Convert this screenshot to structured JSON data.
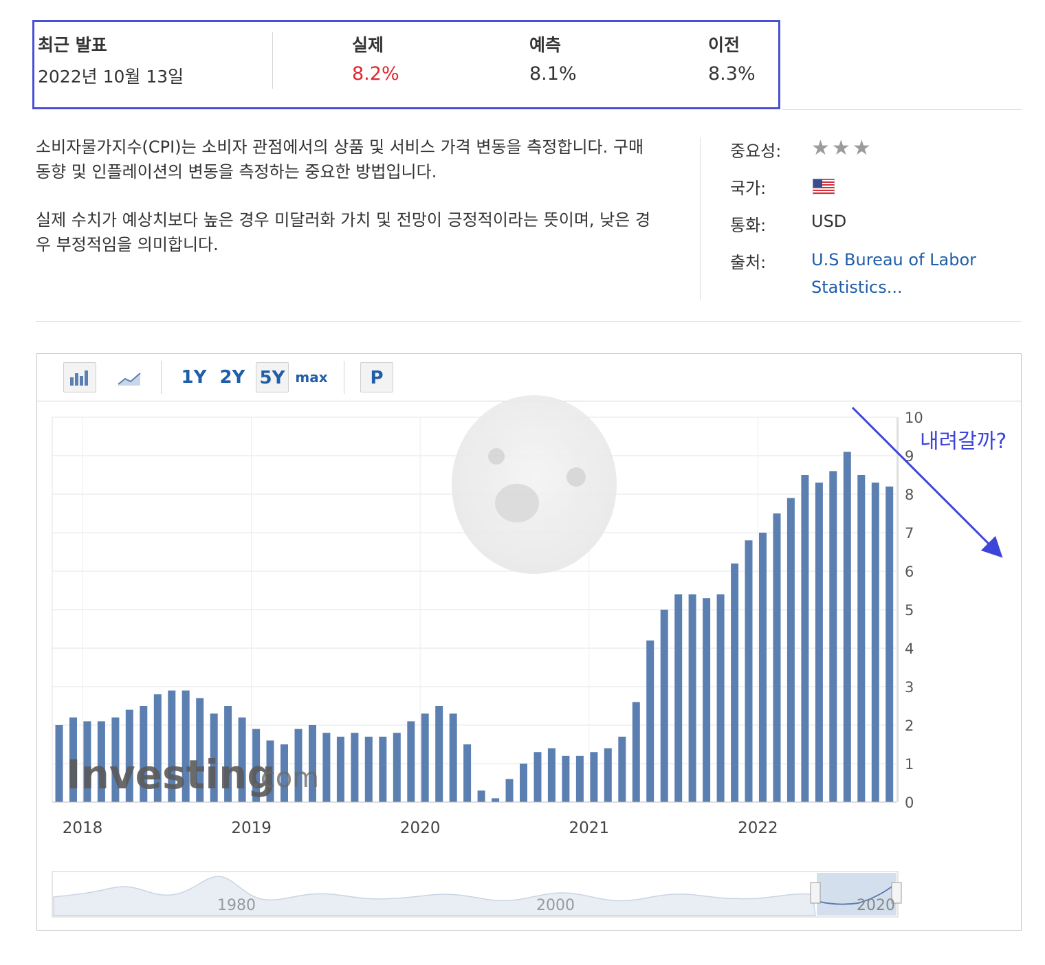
{
  "release": {
    "title": "최근 발표",
    "date": "2022년 10월 13일",
    "actual_label": "실제",
    "actual_value": "8.2%",
    "forecast_label": "예측",
    "forecast_value": "8.1%",
    "previous_label": "이전",
    "previous_value": "8.3%"
  },
  "description": {
    "p1": "소비자물가지수(CPI)는 소비자 관점에서의 상품 및 서비스 가격 변동을 측정합니다. 구매 동향 및 인플레이션의 변동을 측정하는 중요한 방법입니다.",
    "p2": "실제 수치가 예상치보다 높은 경우 미달러화 가치 및 전망이 긍정적이라는 뜻이며, 낮은 경우 부정적임을 의미합니다."
  },
  "meta": {
    "importance_label": "중요성:",
    "importance_stars": 3,
    "country_label": "국가:",
    "country_flag": "us-flag-icon",
    "currency_label": "통화:",
    "currency_value": "USD",
    "source_label": "출처:",
    "source_value": "U.S Bureau of Labor Statistics..."
  },
  "toolbar": {
    "bar_icon": "bar-chart-icon",
    "line_icon": "line-chart-icon",
    "ranges": [
      "1Y",
      "2Y",
      "5Y",
      "max"
    ],
    "active_range": "5Y",
    "p_label": "P"
  },
  "colors": {
    "accent_border": "#4a4fd6",
    "actual_red": "#e0252b",
    "bar": "#5b7fb0",
    "link": "#1f5ea8",
    "annotation": "#3d45d8"
  },
  "annotation": {
    "text": "내려갈까?"
  },
  "watermark": "Investing.com",
  "chart_data": {
    "type": "bar",
    "title": "",
    "xlabel": "",
    "ylabel": "",
    "ylim": [
      0,
      10
    ],
    "yticks": [
      "0",
      "1",
      "2",
      "3",
      "4",
      "5",
      "6",
      "7",
      "8",
      "9",
      "10"
    ],
    "x_tick_labels": [
      "2018",
      "2019",
      "2020",
      "2021",
      "2022"
    ],
    "values": [
      2.0,
      2.2,
      2.1,
      2.1,
      2.2,
      2.4,
      2.5,
      2.8,
      2.9,
      2.9,
      2.7,
      2.3,
      2.5,
      2.2,
      1.9,
      1.6,
      1.5,
      1.9,
      2.0,
      1.8,
      1.7,
      1.8,
      1.7,
      1.7,
      1.8,
      2.1,
      2.3,
      2.5,
      2.3,
      1.5,
      0.3,
      0.1,
      0.6,
      1.0,
      1.3,
      1.4,
      1.2,
      1.2,
      1.3,
      1.4,
      1.7,
      2.6,
      4.2,
      5.0,
      5.4,
      5.4,
      5.3,
      5.4,
      6.2,
      6.8,
      7.0,
      7.5,
      7.9,
      8.5,
      8.3,
      8.6,
      9.1,
      8.5,
      8.3,
      8.2
    ],
    "navigator_labels": [
      "1980",
      "2000",
      "2020"
    ],
    "grid": true,
    "legend": "none"
  }
}
